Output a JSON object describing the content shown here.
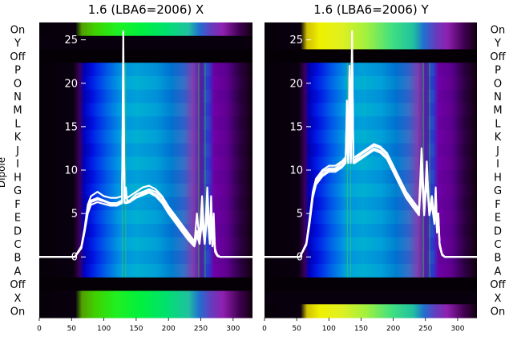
{
  "chart_data": [
    {
      "type": "heatmap",
      "title": "1.6 (LBA6=2006) X",
      "ylabel": "Dipole",
      "x_ticks": [
        0,
        50,
        100,
        150,
        200,
        250,
        300
      ],
      "xlim": [
        0,
        330
      ],
      "row_labels_top_to_bottom": [
        "On",
        "Y",
        "Off",
        "P",
        "O",
        "N",
        "M",
        "L",
        "K",
        "J",
        "I",
        "H",
        "G",
        "F",
        "E",
        "D",
        "C",
        "B",
        "A",
        "Off",
        "X",
        "On"
      ],
      "overlay_y_ticks": [
        0,
        5,
        10,
        15,
        20,
        25
      ],
      "overlay_ylim": [
        -7,
        27
      ],
      "overlay_series": {
        "x": [
          0,
          55,
          65,
          70,
          75,
          80,
          90,
          100,
          110,
          120,
          128,
          130,
          132,
          134,
          136,
          140,
          150,
          160,
          170,
          180,
          190,
          200,
          210,
          220,
          230,
          240,
          244,
          248,
          252,
          256,
          260,
          264,
          266,
          268,
          270,
          272,
          274,
          276,
          280,
          330
        ],
        "lines": [
          [
            0,
            0,
            1,
            3,
            5.5,
            6.5,
            6.8,
            6.5,
            6.2,
            6.2,
            6.5,
            21,
            6.5,
            8,
            6.5,
            6.5,
            7.2,
            7.5,
            7.8,
            7.5,
            6.8,
            5.5,
            4.5,
            3.5,
            2.5,
            1.5,
            5,
            2,
            7,
            1.5,
            8,
            2,
            7,
            1.5,
            5,
            1,
            0.5,
            0.2,
            0,
            0
          ],
          [
            0,
            0,
            1.2,
            3.2,
            6,
            7,
            7.5,
            7,
            6.8,
            6.8,
            7,
            19,
            7,
            6.8,
            6.8,
            7,
            7.5,
            8,
            8.2,
            7.8,
            7,
            5.8,
            4.8,
            3.8,
            2.8,
            1.8,
            3,
            2,
            5,
            1.8,
            6,
            1.8,
            5,
            1.5,
            4,
            0.8,
            0.4,
            0.1,
            0,
            0
          ],
          [
            0,
            0,
            1,
            2.8,
            5,
            6,
            6.3,
            6.1,
            5.9,
            5.9,
            6.2,
            18,
            6.2,
            6.2,
            6.2,
            6.3,
            6.8,
            7.1,
            7.4,
            7,
            6.2,
            5,
            4,
            3,
            2,
            1.2,
            2.5,
            1.5,
            4,
            1.5,
            5,
            1.5,
            4,
            1.2,
            3,
            0.6,
            0.3,
            0.1,
            0,
            0
          ],
          [
            0,
            0,
            1.1,
            3,
            5.3,
            6.3,
            6.6,
            6.4,
            6.1,
            6,
            6.3,
            26,
            6.3,
            6.3,
            6.3,
            6.4,
            6.9,
            7.3,
            7.6,
            7.2,
            6.5,
            5.2,
            4.2,
            3.2,
            2.2,
            1.4,
            2.8,
            1.6,
            4.5,
            1.6,
            5.5,
            1.6,
            4.5,
            1.3,
            3.5,
            0.7,
            0.3,
            0.1,
            0,
            0
          ]
        ]
      }
    },
    {
      "type": "heatmap",
      "title": "1.6 (LBA6=2006) Y",
      "x_ticks": [
        0,
        50,
        100,
        150,
        200,
        250,
        300
      ],
      "xlim": [
        0,
        330
      ],
      "row_labels_top_to_bottom": [
        "On",
        "Y",
        "Off",
        "P",
        "O",
        "N",
        "M",
        "L",
        "K",
        "J",
        "I",
        "H",
        "G",
        "F",
        "E",
        "D",
        "C",
        "B",
        "A",
        "Off",
        "X",
        "On"
      ],
      "overlay_y_ticks": [
        0,
        5,
        10,
        15,
        20,
        25
      ],
      "overlay_ylim": [
        -7,
        27
      ],
      "overlay_series": {
        "x": [
          0,
          55,
          65,
          70,
          75,
          80,
          90,
          100,
          110,
          120,
          126,
          128,
          130,
          132,
          134,
          136,
          138,
          140,
          150,
          160,
          170,
          180,
          190,
          200,
          210,
          220,
          230,
          240,
          244,
          248,
          252,
          256,
          260,
          264,
          266,
          268,
          270,
          272,
          274,
          276,
          280,
          330
        ],
        "lines": [
          [
            0,
            0,
            1.5,
            4,
            7,
            8.5,
            9.5,
            10,
            10,
            10.5,
            11,
            18,
            11,
            20,
            11,
            24,
            11,
            11,
            11.5,
            12,
            12.5,
            12.2,
            11.5,
            10,
            8.5,
            7,
            6,
            5,
            12,
            5,
            11,
            5,
            7,
            4,
            8,
            3,
            5,
            1.5,
            0.8,
            0.3,
            0,
            0
          ],
          [
            0,
            0,
            1.5,
            4.2,
            7.2,
            8.8,
            9.8,
            10.2,
            10.2,
            10.8,
            11.2,
            16,
            11.2,
            22,
            11.2,
            26,
            11.2,
            11.2,
            11.8,
            12.3,
            12.8,
            12.5,
            11.8,
            10.3,
            8.8,
            7.2,
            6.2,
            5.2,
            11,
            5.2,
            10,
            5,
            6.5,
            4,
            7,
            3,
            4.5,
            1.5,
            0.8,
            0.3,
            0,
            0
          ],
          [
            0,
            0,
            1.4,
            3.8,
            6.8,
            8.3,
            9.3,
            9.8,
            9.8,
            10.3,
            10.8,
            15,
            10.8,
            19,
            10.8,
            21,
            10.8,
            10.8,
            11.3,
            11.8,
            12.3,
            12,
            11.3,
            9.8,
            8.3,
            6.8,
            5.8,
            4.8,
            10,
            4.8,
            9,
            4.8,
            6,
            3.8,
            6.5,
            2.8,
            4,
            1.3,
            0.7,
            0.2,
            0,
            0
          ],
          [
            0,
            0,
            1.6,
            4.4,
            7.5,
            9,
            10,
            10.5,
            10.5,
            11,
            11.5,
            17,
            11.5,
            21,
            11.5,
            25,
            11.5,
            11.5,
            12,
            12.5,
            13,
            12.7,
            12,
            10.5,
            9,
            7.5,
            6.5,
            5.5,
            12.5,
            5.5,
            10.5,
            5.2,
            7,
            4.2,
            7.5,
            3.2,
            5,
            1.6,
            0.9,
            0.3,
            0,
            0
          ]
        ]
      }
    }
  ]
}
